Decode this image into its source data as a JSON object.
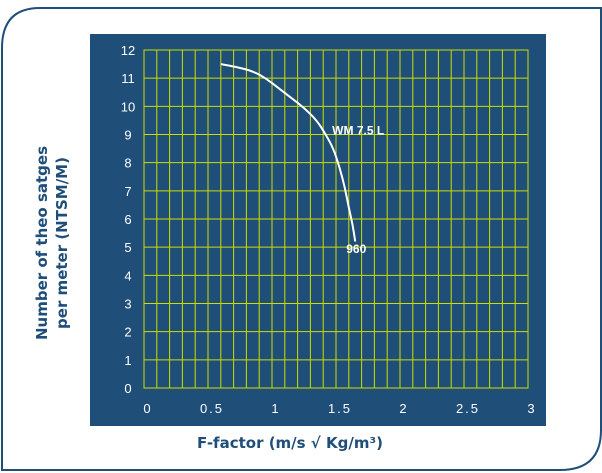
{
  "chart_data": {
    "type": "line",
    "xlabel": "F-factor (m/s √ Kg/m³)",
    "ylabel_line1": "Number of theo satges",
    "ylabel_line2": "per meter  (NTSM/M)",
    "xlim": [
      0,
      3
    ],
    "ylim": [
      0,
      12
    ],
    "x_ticks": [
      "0",
      "0.5",
      "1",
      "1.5",
      "2",
      "2.5",
      "3"
    ],
    "y_ticks": [
      "0",
      "1",
      "2",
      "3",
      "4",
      "5",
      "6",
      "7",
      "8",
      "9",
      "10",
      "11",
      "12"
    ],
    "grid": true,
    "colors": {
      "plot_background": "#1f4e79",
      "grid": "#c8e000",
      "line": "#ffffff",
      "card_border": "#1f4e79",
      "axis_title": "#1f4e79"
    },
    "series": [
      {
        "name": "WM 7.5 L",
        "x": [
          0.6,
          0.72,
          0.85,
          0.95,
          1.05,
          1.15,
          1.25,
          1.35,
          1.42,
          1.48,
          1.53,
          1.57,
          1.6,
          1.63,
          1.65
        ],
        "y": [
          11.5,
          11.4,
          11.25,
          11.0,
          10.65,
          10.3,
          9.95,
          9.5,
          9.0,
          8.5,
          7.8,
          7.1,
          6.4,
          5.8,
          5.2
        ]
      }
    ],
    "annotations": [
      {
        "text": "WM 7.5 L",
        "x": 1.47,
        "y": 9.0
      },
      {
        "text": "960",
        "x": 1.58,
        "y": 4.8
      }
    ]
  }
}
